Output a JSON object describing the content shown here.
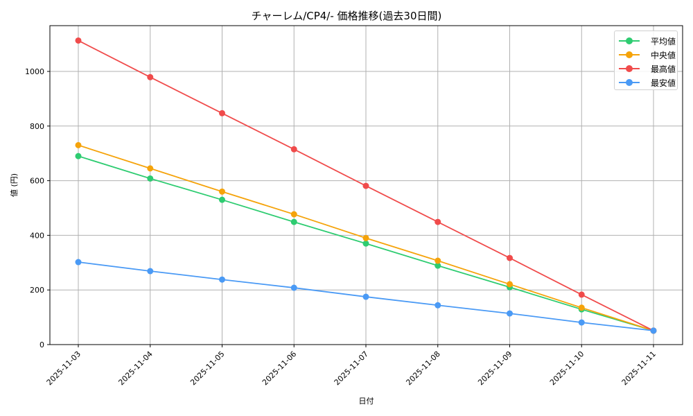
{
  "chart_data": {
    "type": "line",
    "title": "チャーレム/CP4/- 価格推移(過去30日間)",
    "xlabel": "日付",
    "ylabel": "値 (円)",
    "categories": [
      "2025-11-03",
      "2025-11-04",
      "2025-11-05",
      "2025-11-06",
      "2025-11-07",
      "2025-11-08",
      "2025-11-09",
      "2025-11-10",
      "2025-11-11"
    ],
    "yticks": [
      0,
      200,
      400,
      600,
      800,
      1000
    ],
    "ylim": [
      0,
      1163
    ],
    "grid": true,
    "legend_position": "upper right",
    "series": [
      {
        "name": "平均値",
        "color": "#2ecc71",
        "values": [
          690,
          608,
          530,
          449,
          370,
          289,
          210,
          129,
          51
        ]
      },
      {
        "name": "中央値",
        "color": "#f5a30a",
        "values": [
          730,
          645,
          560,
          477,
          390,
          307,
          221,
          135,
          51
        ]
      },
      {
        "name": "最高値",
        "color": "#f04b4b",
        "values": [
          1113,
          979,
          847,
          715,
          581,
          449,
          317,
          183,
          51
        ]
      },
      {
        "name": "最安値",
        "color": "#4a9af5",
        "values": [
          302,
          269,
          238,
          208,
          175,
          144,
          114,
          81,
          51
        ]
      }
    ]
  }
}
